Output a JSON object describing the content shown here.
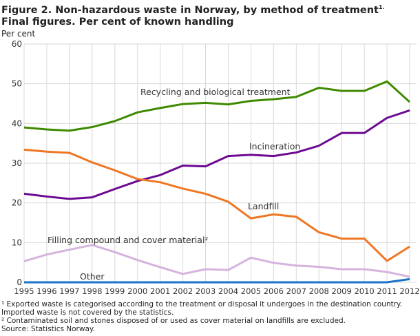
{
  "chart_data": {
    "type": "line",
    "title": "Figure 2. Non-hazardous waste in Norway, by method of treatment",
    "title_sup": "1.",
    "subtitle": "Final figures. Per cent of known handling",
    "ylabel": "Per cent",
    "ylim": [
      0,
      60
    ],
    "yticks": [
      0,
      10,
      20,
      30,
      40,
      50,
      60
    ],
    "grid": true,
    "x": [
      1995,
      1996,
      1997,
      1998,
      1999,
      2000,
      2001,
      2002,
      2003,
      2004,
      2005,
      2006,
      2007,
      2008,
      2009,
      2010,
      2011,
      2012
    ],
    "series": [
      {
        "name": "Recycling and biological treatment",
        "color": "#3f8a00",
        "values": [
          39,
          38.5,
          38.2,
          39.1,
          40.6,
          42.8,
          43.9,
          44.9,
          45.2,
          44.8,
          45.7,
          46.1,
          46.7,
          49,
          48.2,
          48.2,
          50.6,
          45.4
        ]
      },
      {
        "name": "Incineration",
        "color": "#6c0a91",
        "values": [
          22.3,
          21.6,
          21,
          21.4,
          23.5,
          25.5,
          27,
          29.4,
          29.2,
          31.8,
          32.1,
          31.8,
          32.7,
          34.4,
          37.6,
          37.6,
          41.4,
          43.3
        ]
      },
      {
        "name": "Landfill",
        "color": "#ef7622",
        "values": [
          33.4,
          32.9,
          32.6,
          30.2,
          28.2,
          26,
          25.2,
          23.6,
          22.3,
          20.3,
          16.1,
          17.1,
          16.5,
          12.6,
          11,
          11,
          5.4,
          9
        ]
      },
      {
        "name": "Filling compound and cover material²",
        "color": "#d6b3df",
        "values": [
          5.3,
          7,
          8.2,
          9.4,
          7.6,
          5.6,
          3.8,
          2.1,
          3.3,
          3.1,
          6.2,
          4.9,
          4.2,
          3.9,
          3.3,
          3.3,
          2.6,
          1.4
        ]
      },
      {
        "name": "Other",
        "color": "#1a73c8",
        "values": [
          0,
          0,
          0,
          0,
          0,
          0,
          0,
          0,
          0,
          0,
          0,
          0,
          0,
          0,
          0,
          0,
          0,
          0.8
        ]
      }
    ]
  },
  "footnotes": [
    "¹ Exported waste is categorised according to the treatment or disposal it undergoes in the destination country.",
    "Imported waste is not covered by the statistics.",
    "² Contaminated soil and stones disposed of or used as cover material on landfills are excluded.",
    "Source: Statistics Norway."
  ]
}
